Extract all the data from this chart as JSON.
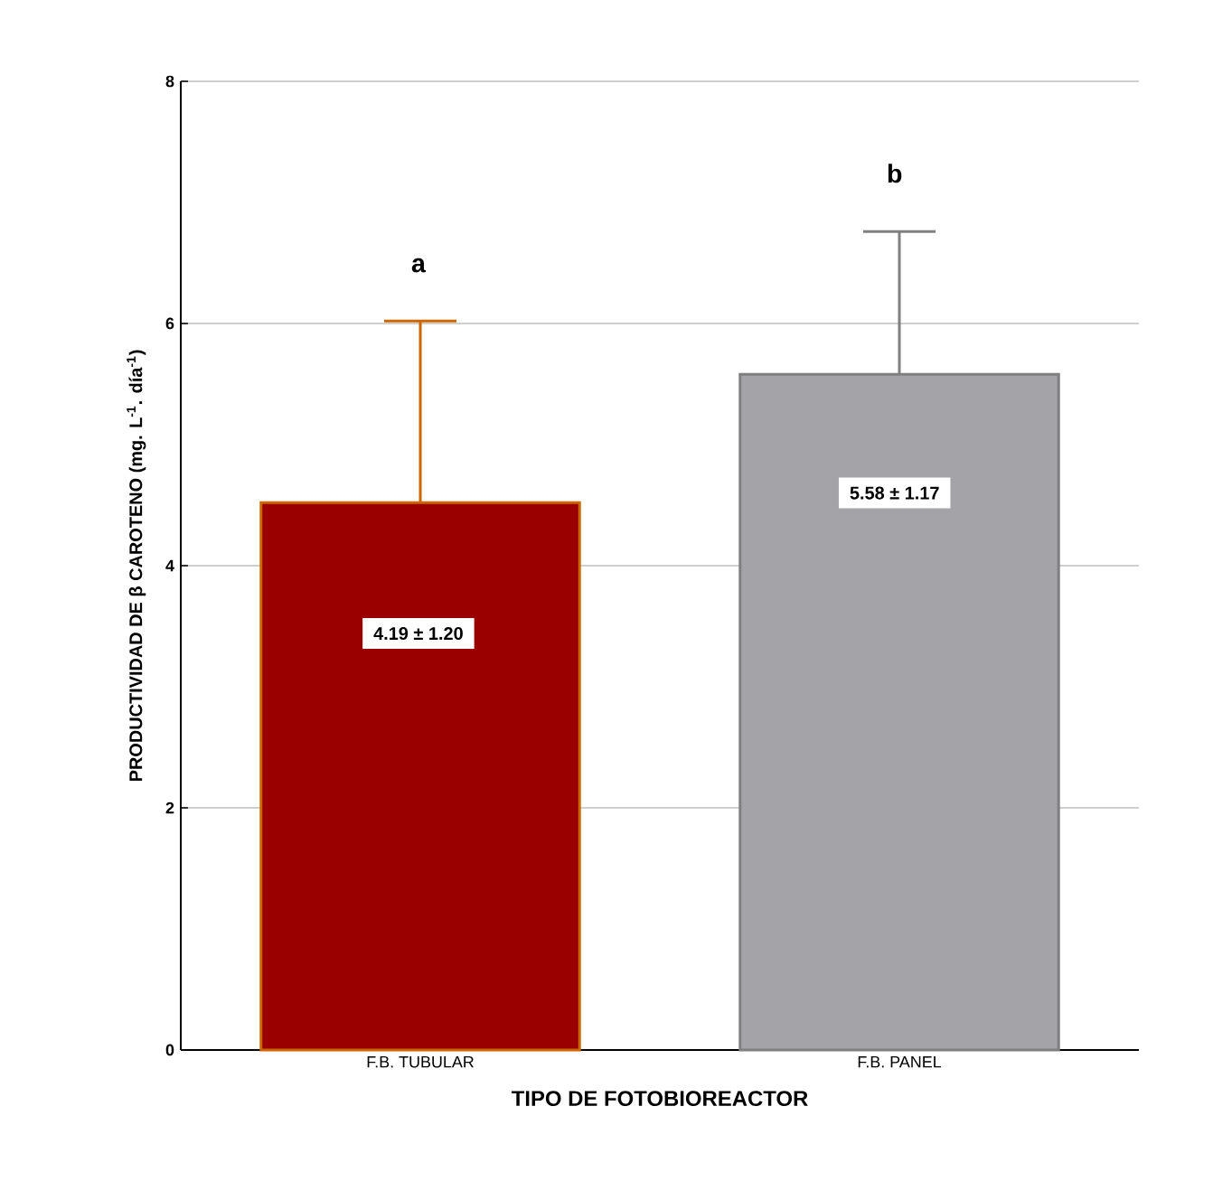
{
  "chart_data": {
    "type": "bar",
    "categories": [
      "F.B. TUBULAR",
      "F.B. PANEL"
    ],
    "values": [
      4.52,
      5.58
    ],
    "colors": [
      "#990000",
      "#a3a3a8"
    ],
    "errors": [
      1.5,
      1.18
    ],
    "annotations": [
      "a",
      "b",
      "4.19 ± 1.20",
      "5.58 ± 1.17"
    ],
    "xlabel": "TIPO DE FOTOBIOREACTOR",
    "ylabel": "PRODUCTIVIDAD DE β CAROTENO (mg. L$^{-1}$. día$^{-1}$)",
    "ylim": [
      0,
      8
    ],
    "yticks": [
      0,
      2,
      4,
      6,
      8
    ],
    "grid": "y"
  }
}
